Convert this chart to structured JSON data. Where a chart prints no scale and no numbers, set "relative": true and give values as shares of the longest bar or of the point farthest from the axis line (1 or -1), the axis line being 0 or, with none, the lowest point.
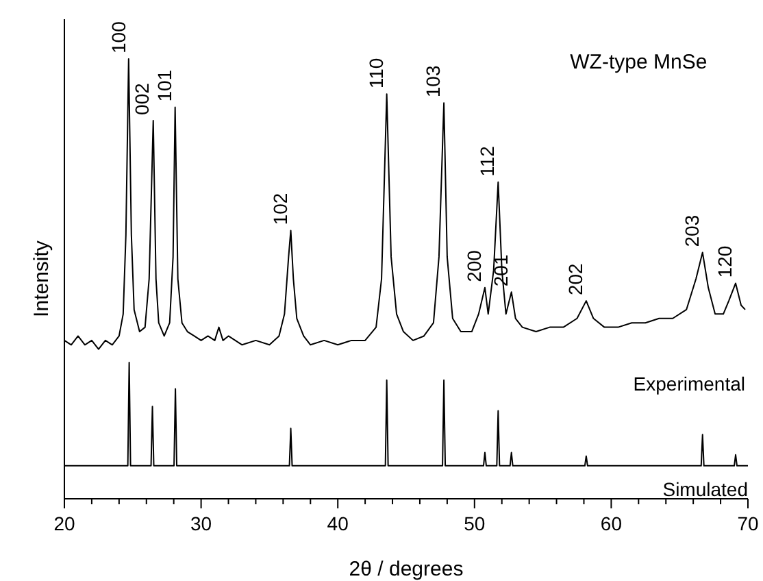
{
  "chart_data": {
    "type": "line",
    "title": "WZ-type MnSe",
    "xlabel": "2θ / degrees",
    "ylabel": "Intensity",
    "relative": true,
    "xlim": [
      20,
      70
    ],
    "xticks": [
      20,
      {
        "value": 22,
        "label": null
      },
      {
        "value": 24,
        "label": null
      },
      {
        "value": 26,
        "label": null
      },
      {
        "value": 28,
        "label": null
      },
      30,
      {
        "value": 32,
        "label": null
      },
      {
        "value": 34,
        "label": null
      },
      {
        "value": 36,
        "label": null
      },
      {
        "value": 38,
        "label": null
      },
      40,
      {
        "value": 42,
        "label": null
      },
      {
        "value": 44,
        "label": null
      },
      {
        "value": 46,
        "label": null
      },
      {
        "value": 48,
        "label": null
      },
      50,
      {
        "value": 52,
        "label": null
      },
      {
        "value": 54,
        "label": null
      },
      {
        "value": 56,
        "label": null
      },
      {
        "value": 58,
        "label": null
      },
      60,
      {
        "value": 62,
        "label": null
      },
      {
        "value": 64,
        "label": null
      },
      {
        "value": 66,
        "label": null
      },
      {
        "value": 68,
        "label": null
      },
      70
    ],
    "series": [
      {
        "name": "Experimental",
        "color": "#000000",
        "x": [
          20,
          20.5,
          21,
          21.5,
          22,
          22.5,
          23,
          23.5,
          24,
          24.3,
          24.5,
          24.7,
          24.9,
          25.1,
          25.5,
          25.9,
          26.2,
          26.5,
          26.7,
          26.9,
          27.3,
          27.7,
          27.95,
          28.1,
          28.3,
          28.6,
          29,
          29.5,
          30,
          30.5,
          31,
          31.3,
          31.6,
          32,
          33,
          34,
          35,
          35.7,
          36.1,
          36.4,
          36.56,
          36.75,
          37,
          37.5,
          38,
          39,
          40,
          41,
          42,
          42.8,
          43.2,
          43.58,
          43.9,
          44.3,
          44.8,
          45.5,
          46.3,
          47,
          47.4,
          47.76,
          48,
          48.4,
          49,
          49.8,
          50.3,
          50.76,
          51,
          51.4,
          51.73,
          52,
          52.3,
          52.7,
          53,
          53.5,
          54.5,
          55.5,
          56.5,
          57.5,
          58.17,
          58.7,
          59.5,
          60.5,
          61.5,
          62.5,
          63.5,
          64.5,
          65.5,
          66.2,
          66.68,
          67.1,
          67.6,
          68.2,
          68.6,
          69.1,
          69.5,
          69.8
        ],
        "values": [
          0.36,
          0.35,
          0.37,
          0.35,
          0.36,
          0.34,
          0.36,
          0.35,
          0.37,
          0.42,
          0.6,
          1.0,
          0.6,
          0.43,
          0.38,
          0.39,
          0.5,
          0.86,
          0.5,
          0.4,
          0.37,
          0.4,
          0.55,
          0.89,
          0.5,
          0.4,
          0.38,
          0.37,
          0.36,
          0.37,
          0.36,
          0.39,
          0.36,
          0.37,
          0.35,
          0.36,
          0.35,
          0.37,
          0.42,
          0.55,
          0.61,
          0.5,
          0.41,
          0.37,
          0.35,
          0.36,
          0.35,
          0.36,
          0.36,
          0.39,
          0.5,
          0.92,
          0.55,
          0.42,
          0.38,
          0.36,
          0.37,
          0.4,
          0.55,
          0.9,
          0.55,
          0.41,
          0.38,
          0.38,
          0.42,
          0.48,
          0.42,
          0.52,
          0.72,
          0.52,
          0.42,
          0.47,
          0.41,
          0.39,
          0.38,
          0.39,
          0.39,
          0.41,
          0.45,
          0.41,
          0.39,
          0.39,
          0.4,
          0.4,
          0.41,
          0.41,
          0.43,
          0.5,
          0.56,
          0.48,
          0.42,
          0.42,
          0.45,
          0.49,
          0.44,
          0.43
        ]
      },
      {
        "name": "Simulated",
        "color": "#000000",
        "x": [
          20,
          24.64,
          24.74,
          24.84,
          26.34,
          26.44,
          26.54,
          28.02,
          28.12,
          28.22,
          36.46,
          36.56,
          36.66,
          43.48,
          43.58,
          43.68,
          47.66,
          47.76,
          47.86,
          50.66,
          50.76,
          50.86,
          51.63,
          51.73,
          51.83,
          52.6,
          52.7,
          52.8,
          58.07,
          58.17,
          58.27,
          66.58,
          66.68,
          66.78,
          69.0,
          69.1,
          69.2,
          70
        ],
        "values": [
          0.075,
          0.075,
          0.31,
          0.075,
          0.075,
          0.21,
          0.075,
          0.075,
          0.25,
          0.075,
          0.075,
          0.16,
          0.075,
          0.075,
          0.27,
          0.075,
          0.075,
          0.27,
          0.075,
          0.075,
          0.105,
          0.075,
          0.075,
          0.2,
          0.075,
          0.075,
          0.105,
          0.075,
          0.075,
          0.097,
          0.075,
          0.075,
          0.146,
          0.075,
          0.075,
          0.1,
          0.075,
          0.075
        ]
      }
    ],
    "annotations": [
      {
        "text": "100",
        "x": 24.74,
        "y": 1.0
      },
      {
        "text": "002",
        "x": 26.44,
        "y": 0.86
      },
      {
        "text": "101",
        "x": 28.12,
        "y": 0.89
      },
      {
        "text": "102",
        "x": 36.56,
        "y": 0.61
      },
      {
        "text": "110",
        "x": 43.58,
        "y": 0.92
      },
      {
        "text": "103",
        "x": 47.76,
        "y": 0.9
      },
      {
        "text": "200",
        "x": 50.76,
        "y": 0.48
      },
      {
        "text": "112",
        "x": 51.73,
        "y": 0.72
      },
      {
        "text": "201",
        "x": 52.7,
        "y": 0.47
      },
      {
        "text": "202",
        "x": 58.17,
        "y": 0.45
      },
      {
        "text": "203",
        "x": 66.68,
        "y": 0.56
      },
      {
        "text": "120",
        "x": 69.1,
        "y": 0.49
      }
    ]
  }
}
